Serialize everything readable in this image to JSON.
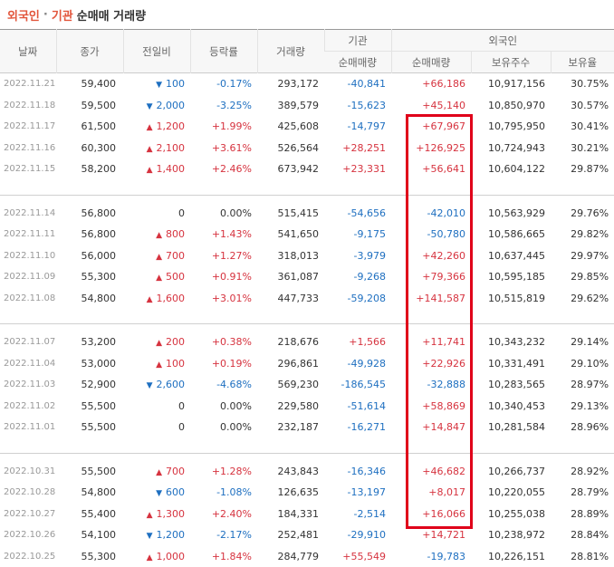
{
  "title": {
    "part1": "외국인",
    "sep": "·",
    "part2": "기관",
    "part3": "순매매 거래량"
  },
  "headers": {
    "date": "날짜",
    "close": "종가",
    "change": "전일비",
    "rate": "등락률",
    "volume": "거래량",
    "inst": "기관",
    "foreign": "외국인",
    "inst_net": "순매매량",
    "foreign_net": "순매매량",
    "holdings": "보유주수",
    "ratio": "보유율"
  },
  "groups": [
    [
      {
        "date": "2022.11.21",
        "close": "59,400",
        "dir": "down",
        "change": "100",
        "rate": "-0.17%",
        "volume": "293,172",
        "inst": "-40,841",
        "foreign": "+66,186",
        "hold": "10,917,156",
        "ratio": "30.75%"
      },
      {
        "date": "2022.11.18",
        "close": "59,500",
        "dir": "down",
        "change": "2,000",
        "rate": "-3.25%",
        "volume": "389,579",
        "inst": "-15,623",
        "foreign": "+45,140",
        "hold": "10,850,970",
        "ratio": "30.57%"
      },
      {
        "date": "2022.11.17",
        "close": "61,500",
        "dir": "up",
        "change": "1,200",
        "rate": "+1.99%",
        "volume": "425,608",
        "inst": "-14,797",
        "foreign": "+67,967",
        "hold": "10,795,950",
        "ratio": "30.41%"
      },
      {
        "date": "2022.11.16",
        "close": "60,300",
        "dir": "up",
        "change": "2,100",
        "rate": "+3.61%",
        "volume": "526,564",
        "inst": "+28,251",
        "foreign": "+126,925",
        "hold": "10,724,943",
        "ratio": "30.21%"
      },
      {
        "date": "2022.11.15",
        "close": "58,200",
        "dir": "up",
        "change": "1,400",
        "rate": "+2.46%",
        "volume": "673,942",
        "inst": "+23,331",
        "foreign": "+56,641",
        "hold": "10,604,122",
        "ratio": "29.87%"
      }
    ],
    [
      {
        "date": "2022.11.14",
        "close": "56,800",
        "dir": "flat",
        "change": "0",
        "rate": "0.00%",
        "volume": "515,415",
        "inst": "-54,656",
        "foreign": "-42,010",
        "hold": "10,563,929",
        "ratio": "29.76%"
      },
      {
        "date": "2022.11.11",
        "close": "56,800",
        "dir": "up",
        "change": "800",
        "rate": "+1.43%",
        "volume": "541,650",
        "inst": "-9,175",
        "foreign": "-50,780",
        "hold": "10,586,665",
        "ratio": "29.82%"
      },
      {
        "date": "2022.11.10",
        "close": "56,000",
        "dir": "up",
        "change": "700",
        "rate": "+1.27%",
        "volume": "318,013",
        "inst": "-3,979",
        "foreign": "+42,260",
        "hold": "10,637,445",
        "ratio": "29.97%"
      },
      {
        "date": "2022.11.09",
        "close": "55,300",
        "dir": "up",
        "change": "500",
        "rate": "+0.91%",
        "volume": "361,087",
        "inst": "-9,268",
        "foreign": "+79,366",
        "hold": "10,595,185",
        "ratio": "29.85%"
      },
      {
        "date": "2022.11.08",
        "close": "54,800",
        "dir": "up",
        "change": "1,600",
        "rate": "+3.01%",
        "volume": "447,733",
        "inst": "-59,208",
        "foreign": "+141,587",
        "hold": "10,515,819",
        "ratio": "29.62%"
      }
    ],
    [
      {
        "date": "2022.11.07",
        "close": "53,200",
        "dir": "up",
        "change": "200",
        "rate": "+0.38%",
        "volume": "218,676",
        "inst": "+1,566",
        "foreign": "+11,741",
        "hold": "10,343,232",
        "ratio": "29.14%"
      },
      {
        "date": "2022.11.04",
        "close": "53,000",
        "dir": "up",
        "change": "100",
        "rate": "+0.19%",
        "volume": "296,861",
        "inst": "-49,928",
        "foreign": "+22,926",
        "hold": "10,331,491",
        "ratio": "29.10%"
      },
      {
        "date": "2022.11.03",
        "close": "52,900",
        "dir": "down",
        "change": "2,600",
        "rate": "-4.68%",
        "volume": "569,230",
        "inst": "-186,545",
        "foreign": "-32,888",
        "hold": "10,283,565",
        "ratio": "28.97%"
      },
      {
        "date": "2022.11.02",
        "close": "55,500",
        "dir": "flat",
        "change": "0",
        "rate": "0.00%",
        "volume": "229,580",
        "inst": "-51,614",
        "foreign": "+58,869",
        "hold": "10,340,453",
        "ratio": "29.13%"
      },
      {
        "date": "2022.11.01",
        "close": "55,500",
        "dir": "flat",
        "change": "0",
        "rate": "0.00%",
        "volume": "232,187",
        "inst": "-16,271",
        "foreign": "+14,847",
        "hold": "10,281,584",
        "ratio": "28.96%"
      }
    ],
    [
      {
        "date": "2022.10.31",
        "close": "55,500",
        "dir": "up",
        "change": "700",
        "rate": "+1.28%",
        "volume": "243,843",
        "inst": "-16,346",
        "foreign": "+46,682",
        "hold": "10,266,737",
        "ratio": "28.92%"
      },
      {
        "date": "2022.10.28",
        "close": "54,800",
        "dir": "down",
        "change": "600",
        "rate": "-1.08%",
        "volume": "126,635",
        "inst": "-13,197",
        "foreign": "+8,017",
        "hold": "10,220,055",
        "ratio": "28.79%"
      },
      {
        "date": "2022.10.27",
        "close": "55,400",
        "dir": "up",
        "change": "1,300",
        "rate": "+2.40%",
        "volume": "184,331",
        "inst": "-2,514",
        "foreign": "+16,066",
        "hold": "10,255,038",
        "ratio": "28.89%"
      },
      {
        "date": "2022.10.26",
        "close": "54,100",
        "dir": "down",
        "change": "1,200",
        "rate": "-2.17%",
        "volume": "252,481",
        "inst": "-29,910",
        "foreign": "+14,721",
        "hold": "10,238,972",
        "ratio": "28.84%"
      },
      {
        "date": "2022.10.25",
        "close": "55,300",
        "dir": "up",
        "change": "1,000",
        "rate": "+1.84%",
        "volume": "284,779",
        "inst": "+55,549",
        "foreign": "-19,783",
        "hold": "10,226,151",
        "ratio": "28.81%"
      }
    ]
  ],
  "colors": {
    "up": "#d6333f",
    "down": "#1e6fc0",
    "highlight": "#e0001a"
  }
}
